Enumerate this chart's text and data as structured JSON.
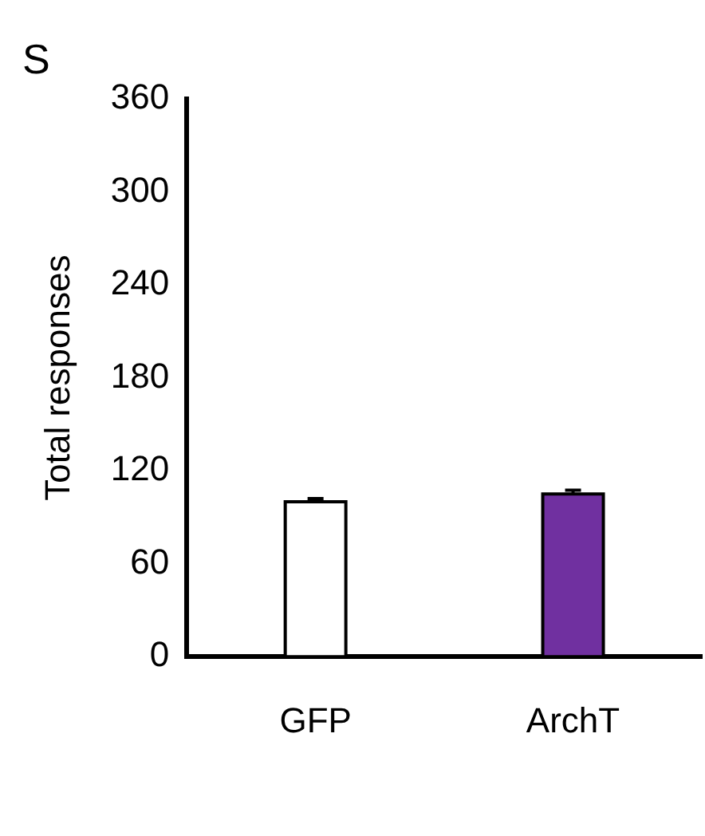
{
  "chart_data": {
    "type": "bar",
    "ylabel": "Total responses",
    "categories": [
      "GFP",
      "ArchT"
    ],
    "values": [
      100,
      105
    ],
    "colors": [
      "#ffffff",
      "#7030a0"
    ],
    "errors": [
      2,
      2.5
    ],
    "ylim": [
      0,
      360
    ],
    "yticks": [
      0,
      60,
      120,
      180,
      240,
      300,
      360
    ],
    "grid": false,
    "legend": false,
    "annotations": [
      "S"
    ]
  }
}
